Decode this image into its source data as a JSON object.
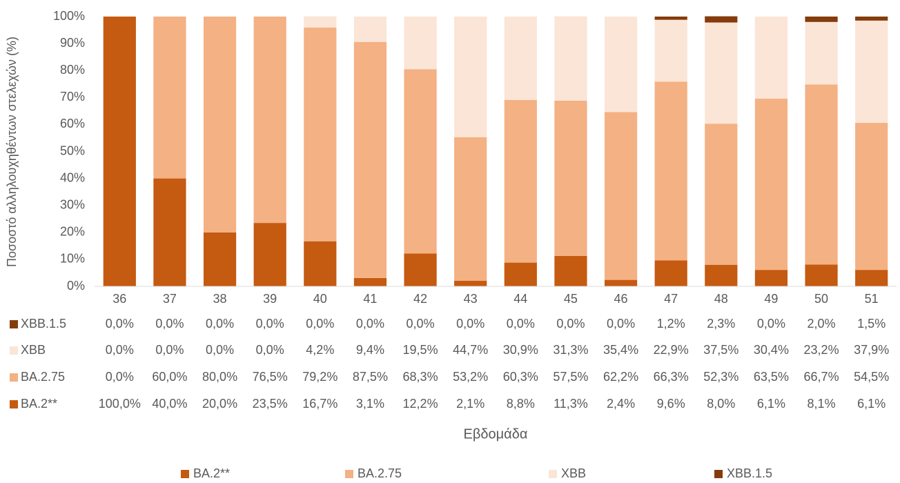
{
  "chart_data": {
    "type": "bar",
    "stacked": true,
    "y_label": "Ποσοστό αλληλουχηθέντων στελεχών (%)",
    "x_label": "Εβδομάδα",
    "categories": [
      "36",
      "37",
      "38",
      "39",
      "40",
      "41",
      "42",
      "43",
      "44",
      "45",
      "46",
      "47",
      "48",
      "49",
      "50",
      "51"
    ],
    "series": [
      {
        "name": "BA.2**",
        "color": "#c55a11",
        "values": [
          100,
          40,
          20,
          23.5,
          16.7,
          3.1,
          12.2,
          2.1,
          8.8,
          11.3,
          2.4,
          9.6,
          8.0,
          6.1,
          8.1,
          6.1
        ],
        "value_labels": [
          "100,0%",
          "40,0%",
          "20,0%",
          "23,5%",
          "16,7%",
          "3,1%",
          "12,2%",
          "2,1%",
          "8,8%",
          "11,3%",
          "2,4%",
          "9,6%",
          "8,0%",
          "6,1%",
          "8,1%",
          "6,1%"
        ]
      },
      {
        "name": "BA.2.75",
        "color": "#f4b183",
        "values": [
          0,
          60,
          80,
          76.5,
          79.2,
          87.5,
          68.3,
          53.2,
          60.3,
          57.5,
          62.2,
          66.3,
          52.3,
          63.5,
          66.7,
          54.5
        ],
        "value_labels": [
          "0,0%",
          "60,0%",
          "80,0%",
          "76,5%",
          "79,2%",
          "87,5%",
          "68,3%",
          "53,2%",
          "60,3%",
          "57,5%",
          "62,2%",
          "66,3%",
          "52,3%",
          "63,5%",
          "66,7%",
          "54,5%"
        ]
      },
      {
        "name": "XBB",
        "color": "#fbe5d6",
        "values": [
          0,
          0,
          0,
          0,
          4.2,
          9.4,
          19.5,
          44.7,
          30.9,
          31.3,
          35.4,
          22.9,
          37.5,
          30.4,
          23.2,
          37.9
        ],
        "value_labels": [
          "0,0%",
          "0,0%",
          "0,0%",
          "0,0%",
          "4,2%",
          "9,4%",
          "19,5%",
          "44,7%",
          "30,9%",
          "31,3%",
          "35,4%",
          "22,9%",
          "37,5%",
          "30,4%",
          "23,2%",
          "37,9%"
        ]
      },
      {
        "name": "XBB.1.5",
        "color": "#843c0c",
        "values": [
          0,
          0,
          0,
          0,
          0,
          0,
          0,
          0,
          0,
          0,
          0,
          1.2,
          2.3,
          0,
          2.0,
          1.5
        ],
        "value_labels": [
          "0,0%",
          "0,0%",
          "0,0%",
          "0,0%",
          "0,0%",
          "0,0%",
          "0,0%",
          "0,0%",
          "0,0%",
          "0,0%",
          "0,0%",
          "1,2%",
          "2,3%",
          "0,0%",
          "2,0%",
          "1,5%"
        ]
      }
    ],
    "ylim": [
      0,
      100
    ],
    "yticks": [
      {
        "value": 0,
        "label": "0%"
      },
      {
        "value": 10,
        "label": "10%"
      },
      {
        "value": 20,
        "label": "20%"
      },
      {
        "value": 30,
        "label": "30%"
      },
      {
        "value": 40,
        "label": "40%"
      },
      {
        "value": 50,
        "label": "50%"
      },
      {
        "value": 60,
        "label": "60%"
      },
      {
        "value": 70,
        "label": "70%"
      },
      {
        "value": 80,
        "label": "80%"
      },
      {
        "value": 90,
        "label": "90%"
      },
      {
        "value": 100,
        "label": "100%"
      }
    ],
    "grid": false
  }
}
